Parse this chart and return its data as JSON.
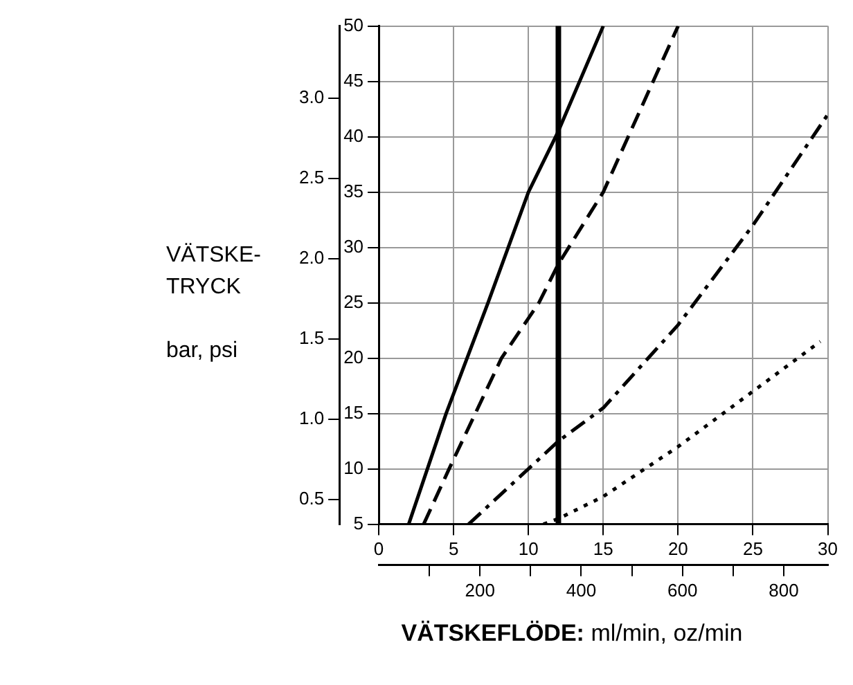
{
  "chart_data": {
    "type": "line",
    "ylabel": "VÄTSKE-\nTRYCK\n\nbar, psi",
    "xlabel": "VÄTSKEFLÖDE: ml/min, oz/min",
    "xlim": [
      0,
      30
    ],
    "xticks": [
      0,
      5,
      10,
      15,
      20,
      25,
      30
    ],
    "x2lim": [
      0,
      887
    ],
    "x2ticks": [
      {
        "value": 100,
        "label": null
      },
      200,
      {
        "value": 300,
        "label": null
      },
      400,
      {
        "value": 500,
        "label": null
      },
      600,
      {
        "value": 700,
        "label": null
      },
      800
    ],
    "ylim": [
      5,
      50
    ],
    "yticks": [
      5,
      10,
      15,
      20,
      25,
      30,
      35,
      40,
      45,
      50
    ],
    "y2lim": [
      0.345,
      3.448
    ],
    "y2ticks": [
      0.5,
      {
        "value": 1,
        "label": "1.0"
      },
      1.5,
      {
        "value": 2,
        "label": "2.0"
      },
      2.5,
      {
        "value": 3,
        "label": "3.0"
      }
    ],
    "grid": true,
    "marker": "none",
    "series": [
      {
        "color": "#000000",
        "line_style": "solid",
        "x": [
          2,
          4.5,
          7.3,
          10,
          12,
          15
        ],
        "values": [
          5,
          15,
          25,
          35,
          40.5,
          50
        ]
      },
      {
        "color": "#000000",
        "line_style": "dashed",
        "x": [
          3,
          4.7,
          8.2,
          10.7,
          12,
          15,
          20
        ],
        "values": [
          5,
          10,
          20,
          25,
          28.5,
          35,
          50
        ]
      },
      {
        "color": "#000000",
        "line_style": "dashdot",
        "x": [
          6,
          10,
          12,
          15,
          20,
          25,
          30
        ],
        "values": [
          5,
          10,
          12.5,
          15.5,
          23,
          32,
          42
        ]
      },
      {
        "color": "#000000",
        "line_style": "dotted",
        "x": [
          11,
          12,
          15,
          20,
          25,
          29.5
        ],
        "values": [
          5,
          5.5,
          7.5,
          12,
          17,
          21.5
        ]
      }
    ],
    "ref_lines": [
      {
        "axis": "x",
        "value": 12,
        "color": "#000000"
      }
    ]
  }
}
